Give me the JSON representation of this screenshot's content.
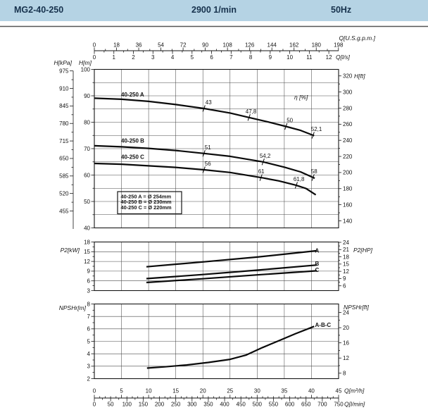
{
  "header": {
    "model": "MG2-40-250",
    "speed": "2900 1/min",
    "frequency": "50Hz"
  },
  "colors": {
    "header_bg": "#b5d3e4",
    "header_text": "#17324d",
    "ink": "#141414",
    "grid": "#4a4a4a"
  },
  "flow_axes": {
    "gpm": {
      "label": "Q[U.S.g.p.m.]",
      "ticks": [
        0,
        18,
        36,
        54,
        72,
        90,
        108,
        126,
        144,
        162,
        180,
        198
      ]
    },
    "ls": {
      "label": "Q[l/s]",
      "ticks": [
        0,
        1,
        2,
        3,
        4,
        5,
        6,
        7,
        8,
        9,
        10,
        11,
        12
      ]
    },
    "m3h": {
      "label": "Q[m³/h]",
      "ticks": [
        0,
        5,
        10,
        15,
        20,
        25,
        30,
        35,
        40,
        45
      ]
    },
    "lmin": {
      "label": "Q[l/min]",
      "ticks": [
        0,
        50,
        100,
        150,
        200,
        250,
        300,
        350,
        400,
        450,
        500,
        550,
        600,
        650,
        700,
        750
      ]
    }
  },
  "legend": {
    "items": [
      "40-250 A = Ø 254mm",
      "40-250 B = Ø 230mm",
      "40-250 C = Ø 220mm"
    ]
  },
  "chart_data": [
    {
      "id": "head-capacity",
      "type": "line",
      "x_unit": "m³/h",
      "xlim": [
        0,
        45
      ],
      "ylim_m": [
        40,
        100
      ],
      "grid": true,
      "eta_label": "η [%]",
      "axis_m": {
        "label": "H[m]",
        "ticks": [
          100,
          90,
          80,
          70,
          60,
          50,
          40
        ]
      },
      "axis_kpa": {
        "label": "H[kPa]",
        "ticks": [
          975,
          910,
          845,
          780,
          715,
          650,
          585,
          520,
          455
        ]
      },
      "axis_ft": {
        "label": "H[ft]",
        "ticks": [
          320,
          300,
          280,
          260,
          240,
          220,
          200,
          180,
          160,
          140
        ]
      },
      "series": [
        {
          "name": "40-250 A",
          "points": [
            [
              0,
              89.1
            ],
            [
              5,
              88.7
            ],
            [
              10,
              87.9
            ],
            [
              15,
              86.7
            ],
            [
              20.2,
              85.2
            ],
            [
              25,
              83.5
            ],
            [
              28.5,
              81.8
            ],
            [
              32,
              80.1
            ],
            [
              35.3,
              78.4
            ],
            [
              38,
              76.9
            ],
            [
              40.5,
              74.9
            ]
          ],
          "efficiency": [
            {
              "q": 20.2,
              "label": "43",
              "dx": 2
            },
            {
              "q": 28.5,
              "label": "47,8",
              "dx": -5
            },
            {
              "q": 35.3,
              "label": "50",
              "dx": 1
            },
            {
              "q": 40.3,
              "label": "52,1",
              "dx": -3
            }
          ]
        },
        {
          "name": "40-250 B",
          "points": [
            [
              0,
              71.1
            ],
            [
              5,
              70.7
            ],
            [
              10,
              70.1
            ],
            [
              15,
              69.3
            ],
            [
              20.2,
              68.2
            ],
            [
              25,
              67.1
            ],
            [
              31.1,
              65
            ],
            [
              35,
              63
            ],
            [
              38,
              61.2
            ],
            [
              40.6,
              58.8
            ]
          ],
          "efficiency": [
            {
              "q": 20.2,
              "label": "51",
              "dx": 1
            },
            {
              "q": 31.1,
              "label": "54,2",
              "dx": -5
            },
            {
              "q": 40.3,
              "label": "58",
              "dx": -3
            }
          ]
        },
        {
          "name": "40-250 C",
          "points": [
            [
              0,
              64.4
            ],
            [
              5,
              64.1
            ],
            [
              10,
              63.5
            ],
            [
              15,
              62.9
            ],
            [
              20.2,
              62
            ],
            [
              25,
              61
            ],
            [
              31.1,
              58.9
            ],
            [
              34,
              57.8
            ],
            [
              37.1,
              56.2
            ],
            [
              39,
              54.9
            ],
            [
              40.8,
              52.5
            ]
          ],
          "efficiency": [
            {
              "q": 20.2,
              "label": "56",
              "dx": 1
            },
            {
              "q": 30.7,
              "label": "61",
              "dx": -4
            },
            {
              "q": 37.2,
              "label": "61,8",
              "dx": -4
            }
          ]
        }
      ]
    },
    {
      "id": "power",
      "type": "line",
      "x_unit": "m³/h",
      "xlim": [
        0,
        45
      ],
      "ylim_kw": [
        3,
        18
      ],
      "grid": true,
      "axis_kw": {
        "label": "P2[kW]",
        "ticks": [
          18,
          15,
          12,
          9,
          6,
          3
        ]
      },
      "axis_hp": {
        "label": "P2[HP]",
        "ticks": [
          24,
          21,
          18,
          15,
          12,
          9,
          6
        ]
      },
      "series": [
        {
          "name": "A",
          "points": [
            [
              9.6,
              10.35
            ],
            [
              20,
              11.85
            ],
            [
              30,
              13.35
            ],
            [
              41,
              15.3
            ]
          ]
        },
        {
          "name": "B",
          "points": [
            [
              9.6,
              6.7
            ],
            [
              20,
              7.95
            ],
            [
              30,
              9.3
            ],
            [
              41,
              10.9
            ]
          ]
        },
        {
          "name": "C",
          "points": [
            [
              9.6,
              5.5
            ],
            [
              20,
              6.65
            ],
            [
              30,
              7.85
            ],
            [
              41,
              9.1
            ]
          ]
        }
      ]
    },
    {
      "id": "npshr",
      "type": "line",
      "x_unit": "m³/h",
      "xlim": [
        0,
        45
      ],
      "ylim_m": [
        2,
        8
      ],
      "grid": true,
      "axis_m": {
        "label": "NPSHr[m]",
        "ticks": [
          8,
          7,
          6,
          5,
          4,
          3,
          2
        ]
      },
      "axis_ft": {
        "label": "NPSHr[ft]",
        "ticks": [
          24,
          20,
          16,
          12,
          8
        ]
      },
      "series": [
        {
          "name": "A-B-C",
          "points": [
            [
              9.7,
              2.85
            ],
            [
              13,
              2.95
            ],
            [
              17,
              3.1
            ],
            [
              21,
              3.3
            ],
            [
              25,
              3.55
            ],
            [
              28,
              3.9
            ],
            [
              31,
              4.5
            ],
            [
              34,
              5.05
            ],
            [
              37,
              5.6
            ],
            [
              40.5,
              6.2
            ]
          ]
        }
      ]
    }
  ]
}
